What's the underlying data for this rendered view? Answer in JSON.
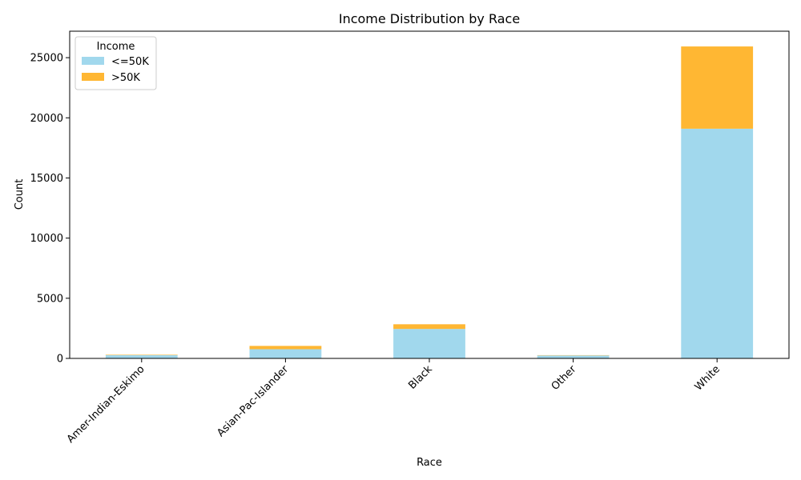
{
  "chart_data": {
    "type": "bar",
    "stacked": true,
    "title": "Income Distribution by Race",
    "xlabel": "Race",
    "ylabel": "Count",
    "categories": [
      "Amer-Indian-Eskimo",
      "Asian-Pac-Islander",
      "Black",
      "Other",
      "White"
    ],
    "series": [
      {
        "name": "<=50K",
        "color": "#a1d8ed",
        "values": [
          275,
          763,
          2451,
          246,
          19094
        ]
      },
      {
        "name": ">50K",
        "color": "#ffb733",
        "values": [
          36,
          276,
          387,
          25,
          6838
        ]
      }
    ],
    "ylim": [
      0,
      27200
    ],
    "yticks": [
      0,
      5000,
      10000,
      15000,
      20000,
      25000
    ],
    "legend": {
      "title": "Income",
      "placement": "top-left"
    },
    "grid": false
  }
}
